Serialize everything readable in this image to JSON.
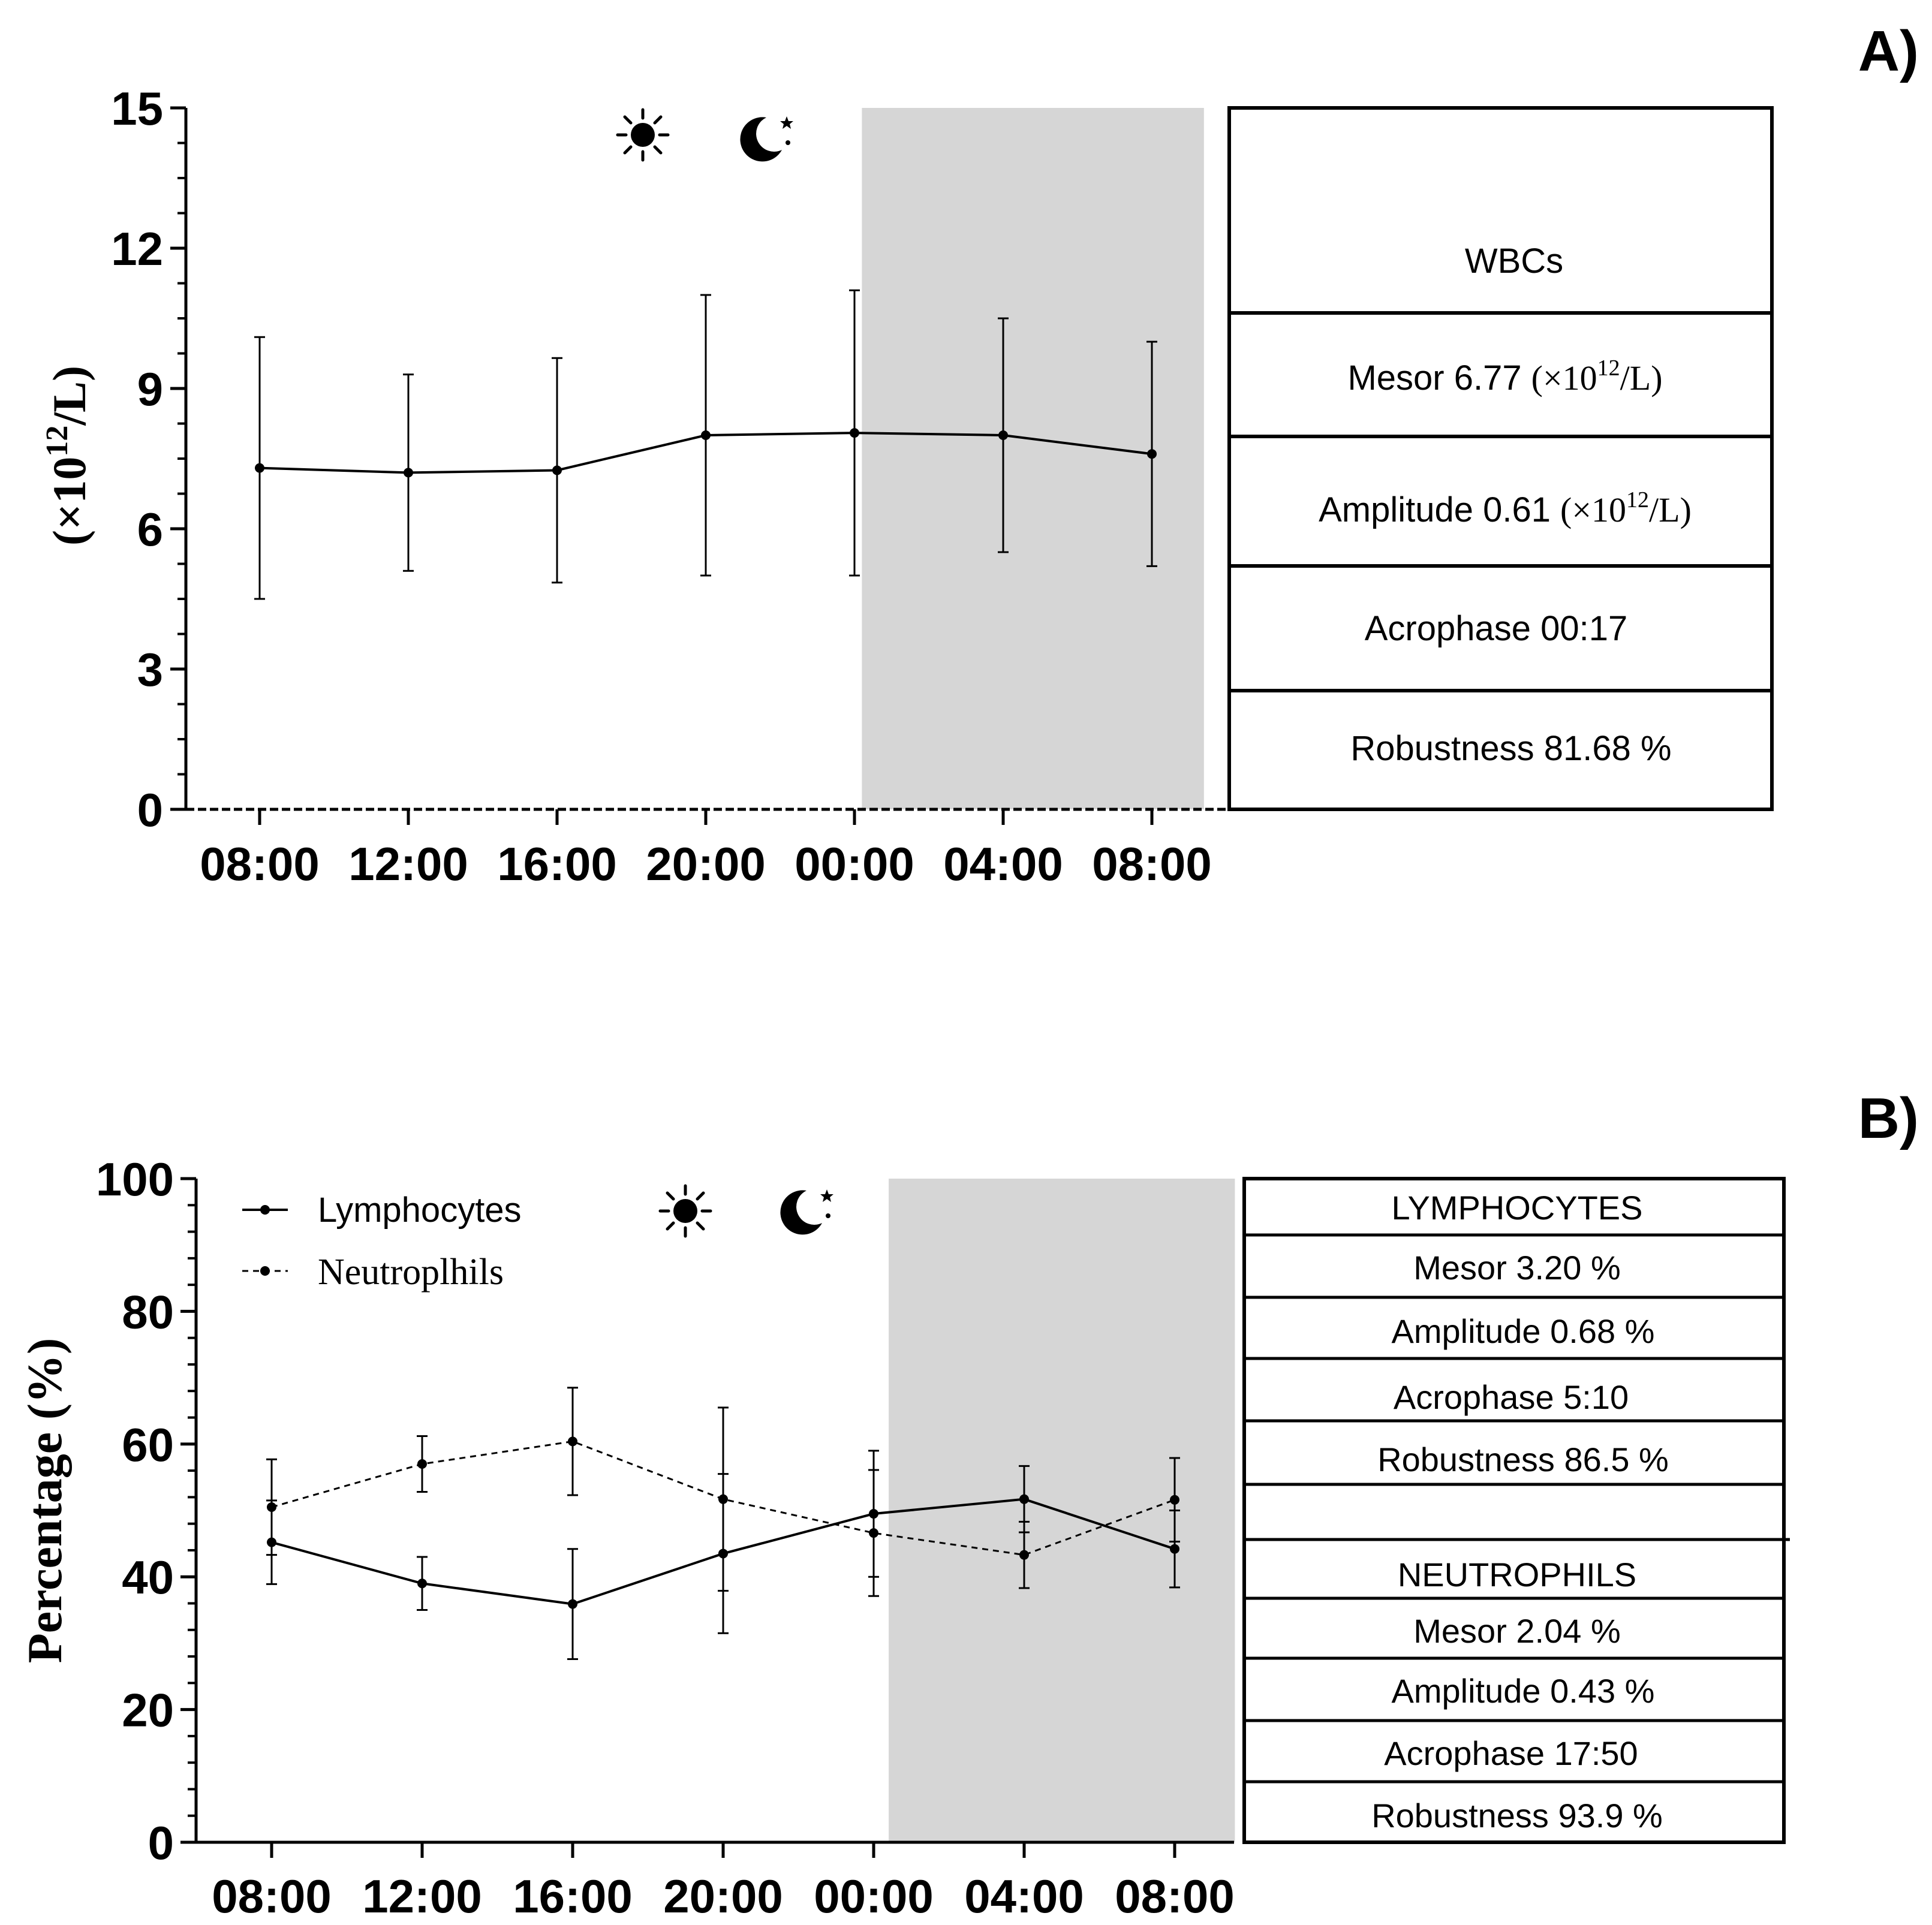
{
  "chart_data": [
    {
      "type": "line",
      "panel_label": "A)",
      "categories": [
        "08:00",
        "12:00",
        "16:00",
        "20:00",
        "00:00",
        "04:00",
        "08:00"
      ],
      "ylabel_prefix": "(×10",
      "ylabel_sup": "12",
      "ylabel_suffix": "/L)",
      "ylim": [
        0,
        15
      ],
      "yticks": [
        0,
        3,
        6,
        9,
        12,
        15
      ],
      "yticklabels": [
        "0",
        "3",
        "6",
        "9",
        "12",
        "15"
      ],
      "dark_period": [
        4.05,
        6.35
      ],
      "series": [
        {
          "name": "",
          "values": [
            7.3,
            7.2,
            7.25,
            8.0,
            8.05,
            8.0,
            7.6
          ],
          "errors": [
            2.8,
            2.1,
            2.4,
            3.0,
            3.05,
            2.5,
            2.4
          ],
          "style": "solid"
        }
      ],
      "table": [
        {
          "text": "WBCs",
          "unit": "",
          "sup": "",
          "unit_end": ""
        },
        {
          "text": "Mesor 6.77",
          "unit": "(×10",
          "sup": "12",
          "unit_end": "/L)"
        },
        {
          "text": "Amplitude 0.61",
          "unit": "(×10",
          "sup": "12",
          "unit_end": "/L)"
        },
        {
          "text": "Acrophase 00:17",
          "unit": "",
          "sup": "",
          "unit_end": ""
        },
        {
          "text": "Robustness 81.68 %",
          "unit": "",
          "sup": "",
          "unit_end": ""
        }
      ]
    },
    {
      "type": "line",
      "panel_label": "B)",
      "categories": [
        "08:00",
        "12:00",
        "16:00",
        "20:00",
        "00:00",
        "04:00",
        "08:00"
      ],
      "ylabel": "Percentage (%)",
      "ylim": [
        0,
        100
      ],
      "yticks": [
        0,
        20,
        40,
        60,
        80,
        100
      ],
      "yticklabels": [
        "0",
        "20",
        "40",
        "60",
        "80",
        "100"
      ],
      "dark_period": [
        4.1,
        6.4
      ],
      "series": [
        {
          "name": "Lymphocytes",
          "values": [
            45.2,
            39.0,
            35.9,
            43.5,
            49.5,
            51.7,
            44.2
          ],
          "errors": [
            6.3,
            4.0,
            8.3,
            12.0,
            9.5,
            5.0,
            5.8
          ],
          "style": "solid"
        },
        {
          "name": "Neutroplhils",
          "values": [
            50.5,
            57.0,
            60.4,
            51.7,
            46.6,
            43.3,
            51.6
          ],
          "errors": [
            7.2,
            4.2,
            8.1,
            13.8,
            9.5,
            5.0,
            6.3
          ],
          "style": "dashed"
        }
      ],
      "table": [
        "LYMPHOCYTES",
        "Mesor 3.20 %",
        "Amplitude 0.68 %",
        "Acrophase 5:10",
        "Robustness 86.5 %",
        "",
        "NEUTROPHILS",
        "Mesor 2.04 %",
        "Amplitude 0.43 %",
        "Acrophase 17:50",
        "Robustness 93.9 %"
      ]
    }
  ]
}
